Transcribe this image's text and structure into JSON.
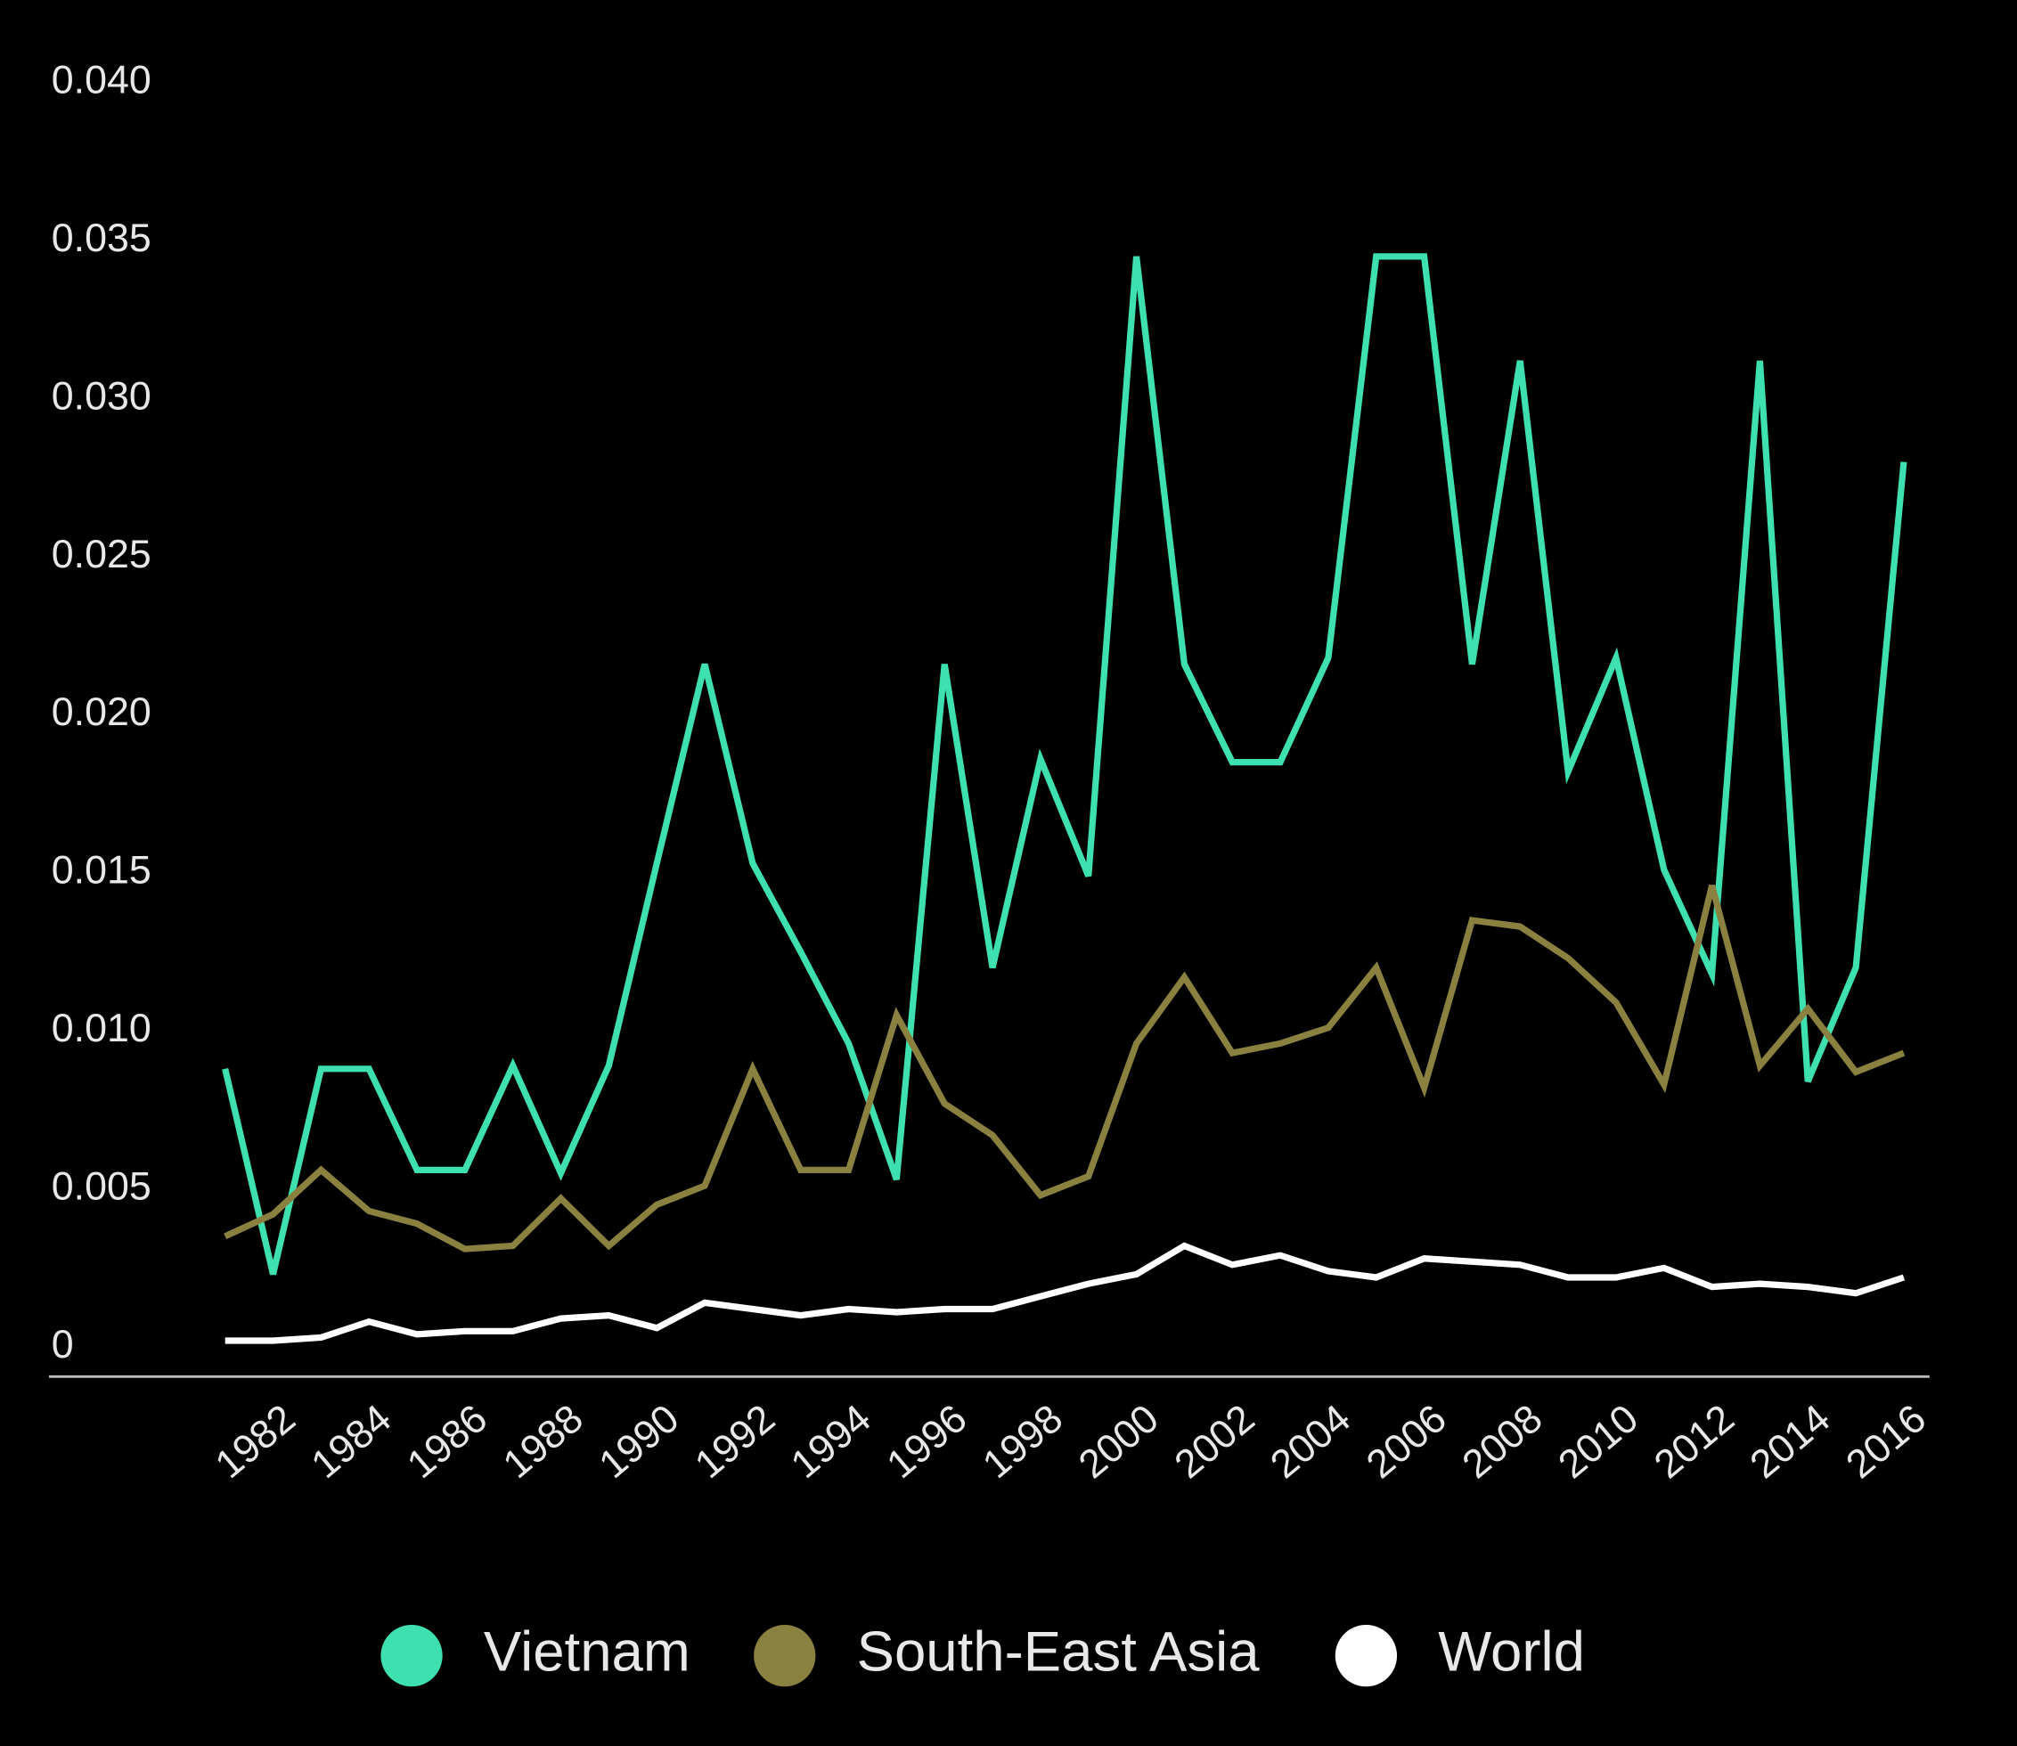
{
  "chart_data": {
    "type": "line",
    "x": [
      1981,
      1982,
      1983,
      1984,
      1985,
      1986,
      1987,
      1988,
      1989,
      1990,
      1991,
      1992,
      1993,
      1994,
      1995,
      1996,
      1997,
      1998,
      1999,
      2000,
      2001,
      2002,
      2003,
      2004,
      2005,
      2006,
      2007,
      2008,
      2009,
      2010,
      2011,
      2012,
      2013,
      2014,
      2015,
      2016
    ],
    "xlim": [
      1981,
      2016
    ],
    "xticks": [
      1982,
      1984,
      1986,
      1988,
      1990,
      1992,
      1994,
      1996,
      1998,
      2000,
      2002,
      2004,
      2006,
      2008,
      2010,
      2012,
      2014,
      2016
    ],
    "ylim": [
      0,
      0.04
    ],
    "yticks": [
      0,
      0.005,
      {
        "value": 0.01,
        "label": "0.010"
      },
      0.015,
      {
        "value": 0.02,
        "label": "0.020"
      },
      0.025,
      {
        "value": 0.03,
        "label": "0.030"
      },
      0.035,
      {
        "value": 0.04,
        "label": "0.040"
      }
    ],
    "grid": false,
    "legend": "bottom",
    "series": [
      {
        "name": "Vietnam",
        "color": "#3ee0b0",
        "values": [
          0.0088,
          0.0023,
          0.0088,
          0.0088,
          0.0056,
          0.0056,
          0.0089,
          0.0055,
          0.0089,
          0.0153,
          0.0216,
          0.0153,
          0.0125,
          0.0096,
          0.0053,
          0.0216,
          0.012,
          0.0186,
          0.0149,
          0.0345,
          0.0216,
          0.0185,
          0.0185,
          0.0218,
          0.0345,
          0.0345,
          0.0216,
          0.0312,
          0.0182,
          0.0218,
          0.0151,
          0.0118,
          0.0312,
          0.0084,
          0.012,
          0.028
        ]
      },
      {
        "name": "South-East Asia",
        "color": "#8a8040",
        "values": [
          0.0035,
          0.0042,
          0.0056,
          0.0043,
          0.0039,
          0.0031,
          0.0032,
          0.0047,
          0.0032,
          0.0045,
          0.0051,
          0.0088,
          0.0056,
          0.0056,
          0.0105,
          0.0077,
          0.0067,
          0.0048,
          0.0054,
          0.0096,
          0.0117,
          0.0093,
          0.0096,
          0.0101,
          0.012,
          0.0082,
          0.0135,
          0.0133,
          0.0123,
          0.0109,
          0.0083,
          0.0146,
          0.0089,
          0.0107,
          0.0087,
          0.0093
        ]
      },
      {
        "name": "World",
        "color": "#ffffff",
        "values": [
          0.0002,
          0.0002,
          0.0003,
          0.0008,
          0.0004,
          0.0005,
          0.0005,
          0.0009,
          0.001,
          0.0006,
          0.0014,
          0.0012,
          0.001,
          0.0012,
          0.0011,
          0.0012,
          0.0012,
          0.0016,
          0.002,
          0.0023,
          0.0032,
          0.0026,
          0.0029,
          0.0024,
          0.0022,
          0.0028,
          0.0027,
          0.0026,
          0.0022,
          0.0022,
          0.0025,
          0.0019,
          0.002,
          0.0019,
          0.0017,
          0.0022
        ]
      }
    ]
  }
}
